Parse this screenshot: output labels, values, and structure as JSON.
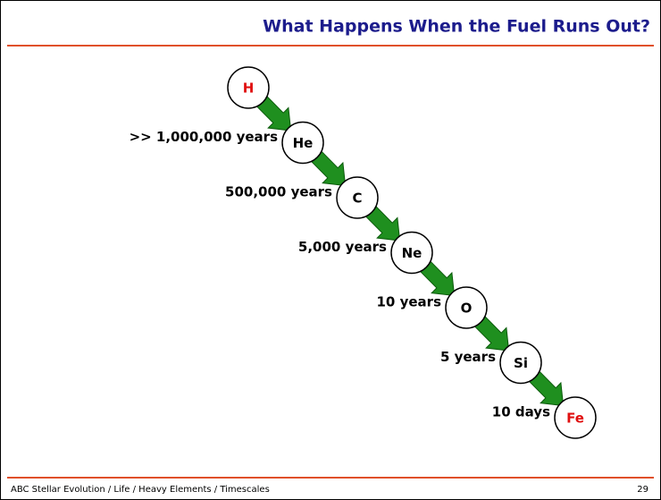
{
  "header": {
    "title": "What Happens When the Fuel Runs Out?"
  },
  "nodes": [
    {
      "label": "H",
      "color": "#e01010"
    },
    {
      "label": "He",
      "color": "#000000"
    },
    {
      "label": "C",
      "color": "#000000"
    },
    {
      "label": "Ne",
      "color": "#000000"
    },
    {
      "label": "O",
      "color": "#000000"
    },
    {
      "label": "Si",
      "color": "#000000"
    },
    {
      "label": "Fe",
      "color": "#e01010"
    }
  ],
  "edges": [
    {
      "label": ">> 1,000,000 years"
    },
    {
      "label": "500,000 years"
    },
    {
      "label": "5,000 years"
    },
    {
      "label": "10 years"
    },
    {
      "label": "5 years"
    },
    {
      "label": "10 days"
    }
  ],
  "footer": {
    "text": "ABC Stellar Evolution / Life / Heavy Elements / Timescales",
    "page": "29"
  }
}
